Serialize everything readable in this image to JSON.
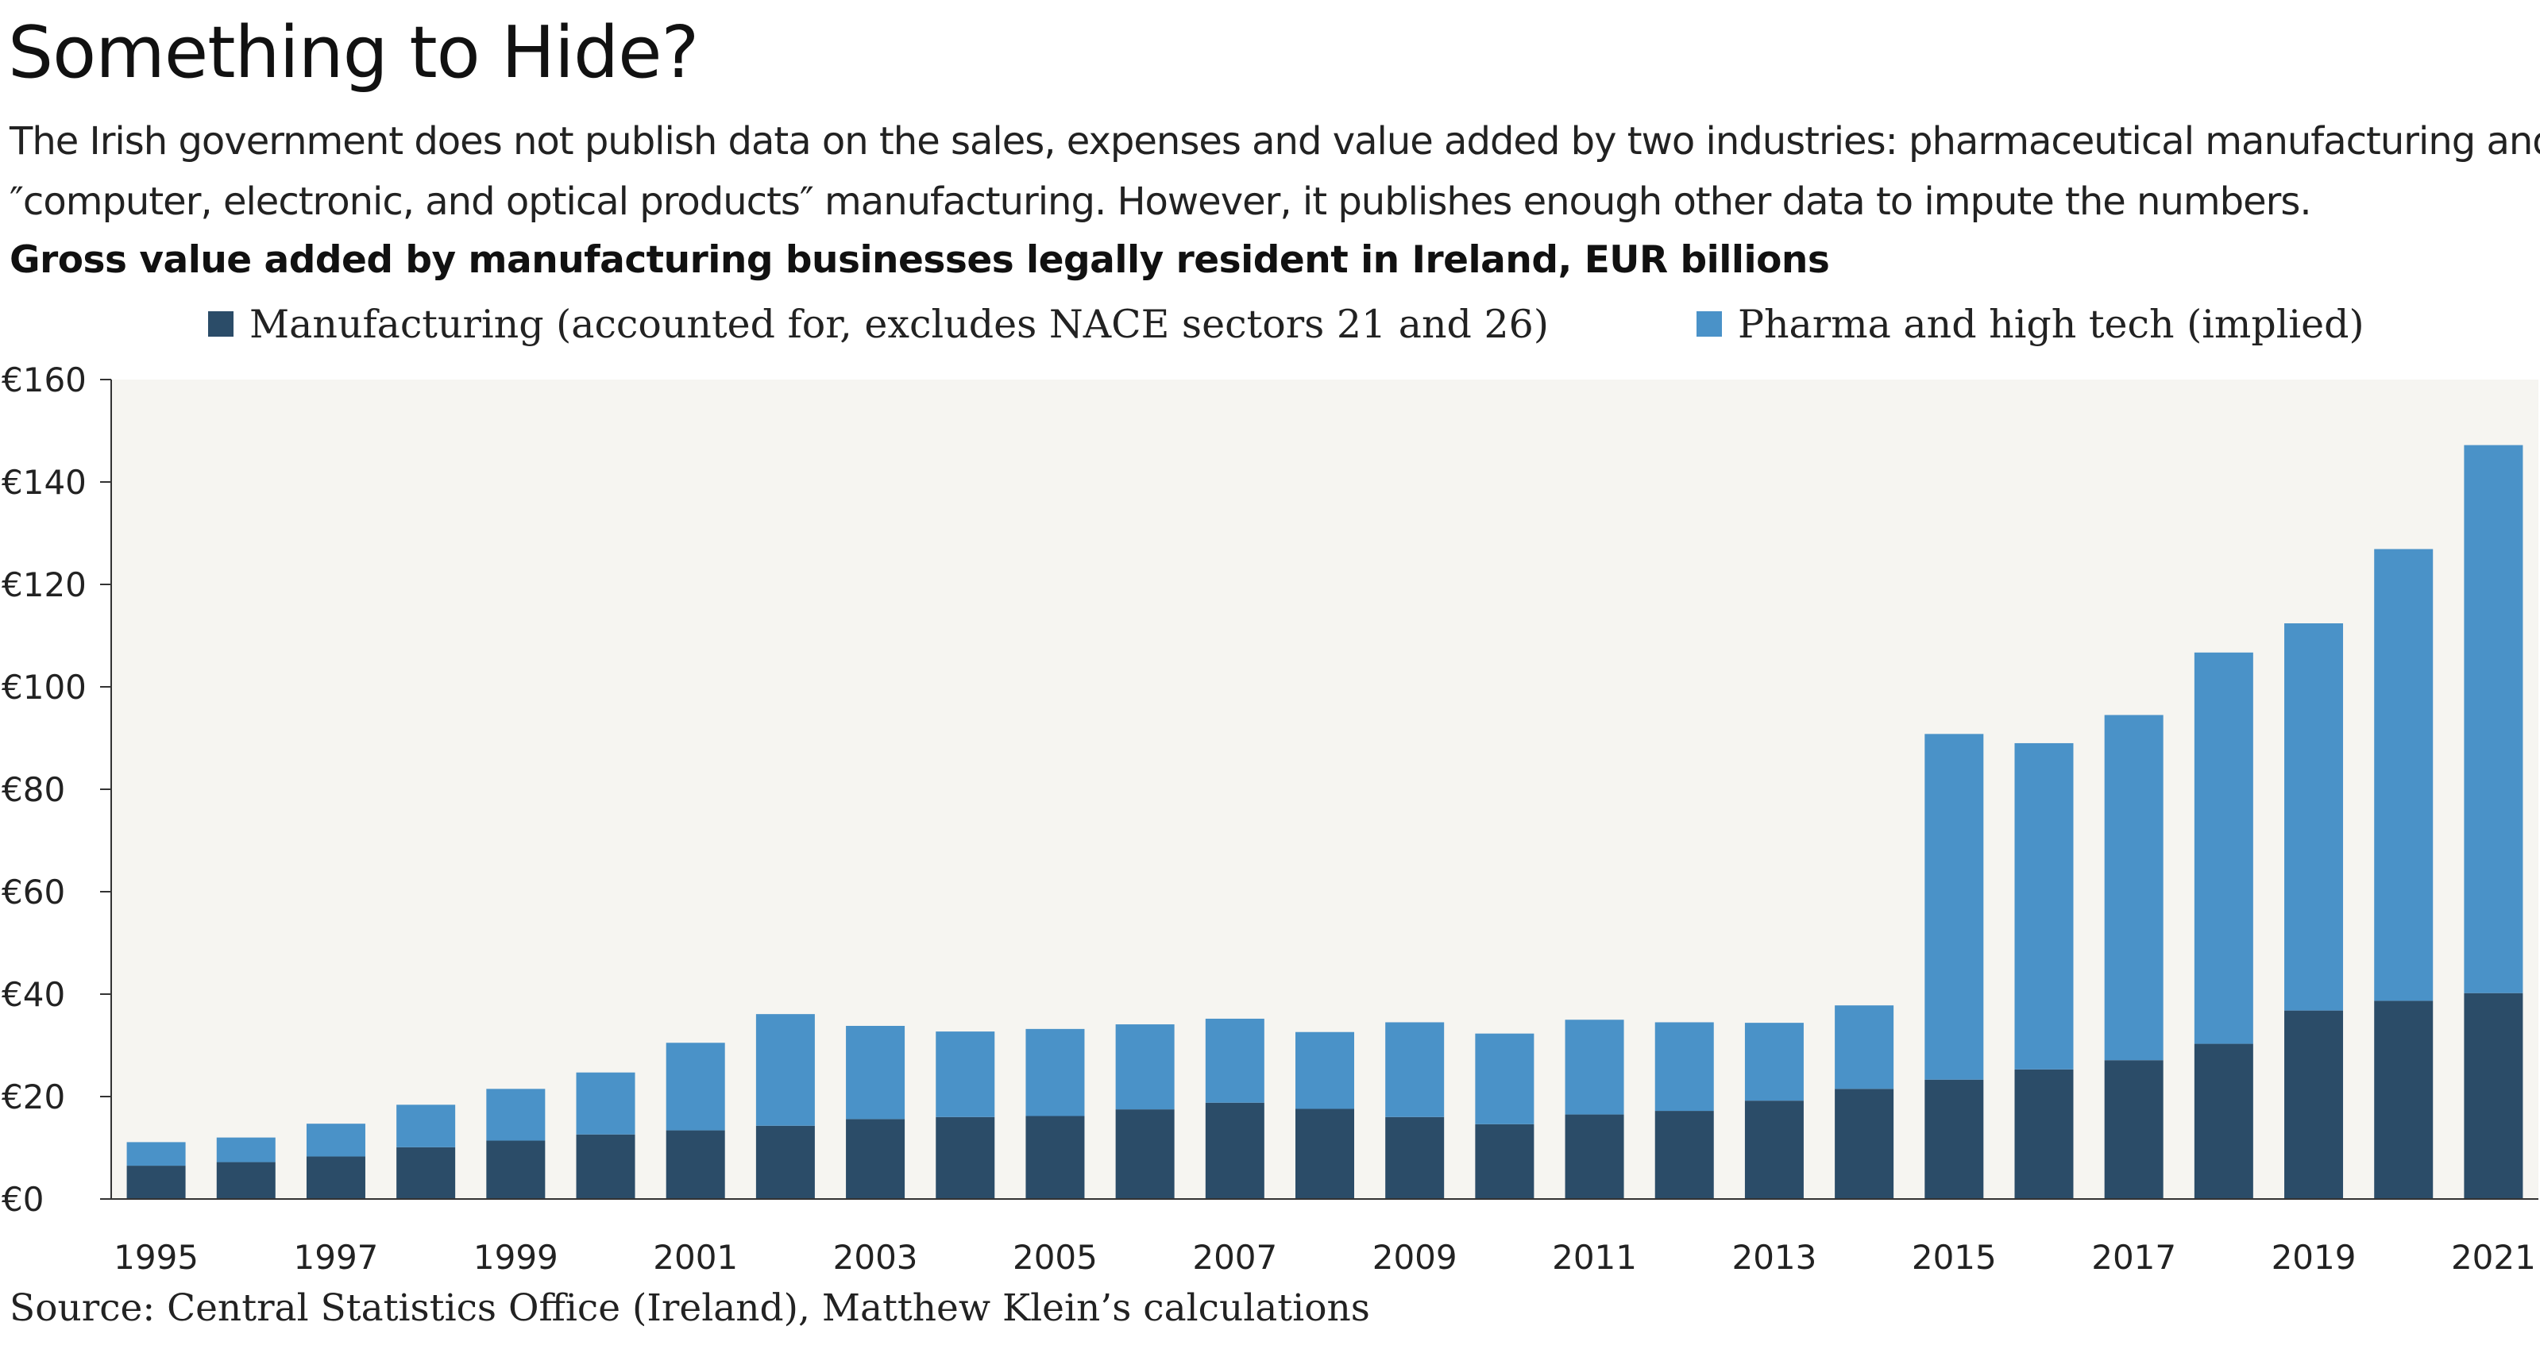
{
  "title": "Something to Hide?",
  "subtitle": [
    "The Irish government does not publish data on the sales, expenses and value added by two industries: pharmaceutical manufacturing and",
    "″computer, electronic, and optical products″ manufacturing. However, it publishes enough other data to impute the numbers."
  ],
  "source": "Source: Central Statistics Office (Ireland), Matthew Klein’s calculations",
  "colors": {
    "manufacturing": "#2b4c68",
    "pharma": "#4a92c8",
    "plot_bg": "#f6f5f1"
  },
  "chart_data": {
    "type": "bar",
    "stacked": true,
    "title": "Gross value added by manufacturing businesses legally resident in Ireland, EUR billions",
    "categories": [
      "1995",
      "1996",
      "1997",
      "1998",
      "1999",
      "2000",
      "2001",
      "2002",
      "2003",
      "2004",
      "2005",
      "2006",
      "2007",
      "2008",
      "2009",
      "2010",
      "2011",
      "2012",
      "2013",
      "2014",
      "2015",
      "2016",
      "2017",
      "2018",
      "2019",
      "2020",
      "2021"
    ],
    "x_tick_labels": [
      "1995",
      "1997",
      "1999",
      "2001",
      "2003",
      "2005",
      "2007",
      "2009",
      "2011",
      "2013",
      "2015",
      "2017",
      "2019",
      "2021"
    ],
    "series": [
      {
        "name": "Manufacturing (accounted for, excludes NACE sectors 21 and 26)",
        "color": "#2b4c68",
        "values": [
          6.5,
          7.2,
          8.3,
          10.1,
          11.4,
          12.6,
          13.4,
          14.3,
          15.6,
          16.0,
          16.2,
          17.5,
          18.8,
          17.6,
          16.0,
          14.6,
          16.5,
          17.2,
          19.2,
          21.5,
          23.3,
          25.3,
          27.1,
          30.3,
          36.8,
          38.7,
          40.2
        ]
      },
      {
        "name": "Pharma and high tech (implied)",
        "color": "#4a92c8",
        "values": [
          4.6,
          4.8,
          6.4,
          8.3,
          10.1,
          12.1,
          17.1,
          21.8,
          18.2,
          16.7,
          17.0,
          16.6,
          16.4,
          15.0,
          18.5,
          17.7,
          18.5,
          17.3,
          15.2,
          16.3,
          67.5,
          63.7,
          67.4,
          76.4,
          75.6,
          88.2,
          107.0
        ]
      }
    ],
    "y_ticks": [
      "€0",
      "€20",
      "€40",
      "€60",
      "€80",
      "€100",
      "€120",
      "€140",
      "€160"
    ],
    "ylim": [
      0,
      160
    ],
    "grid": false,
    "legend_position": "top"
  }
}
